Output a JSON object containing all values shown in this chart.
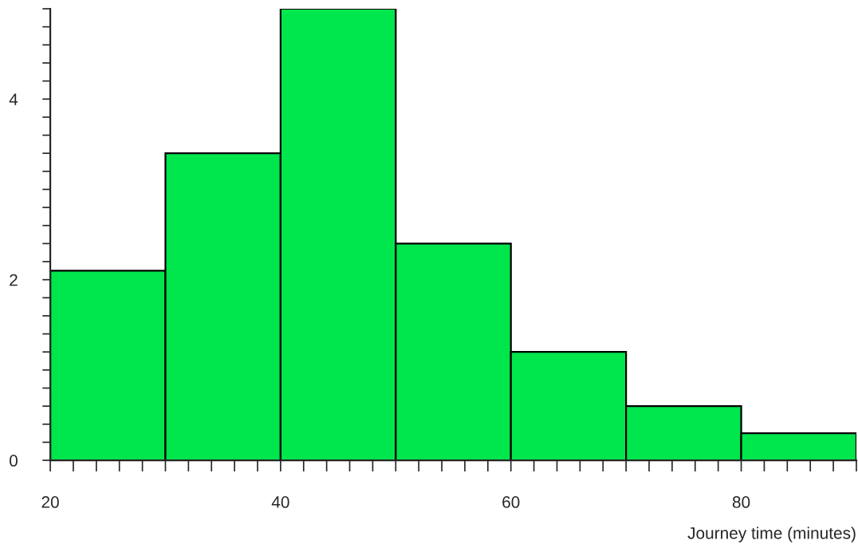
{
  "chart_data": {
    "type": "histogram",
    "xlabel": "Journey time (minutes)",
    "bins": [
      20,
      30,
      40,
      50,
      60,
      70,
      80,
      90
    ],
    "values": [
      2.1,
      3.4,
      5.0,
      2.4,
      1.2,
      0.6,
      0.3
    ],
    "color": "#00e64d",
    "xlim": [
      20,
      90
    ],
    "ylim": [
      0,
      5
    ],
    "xticks": [
      20,
      {
        "value": 22,
        "label": null
      },
      {
        "value": 24,
        "label": null
      },
      {
        "value": 26,
        "label": null
      },
      {
        "value": 28,
        "label": null
      },
      {
        "value": 30,
        "label": null
      },
      {
        "value": 32,
        "label": null
      },
      {
        "value": 34,
        "label": null
      },
      {
        "value": 36,
        "label": null
      },
      {
        "value": 38,
        "label": null
      },
      40,
      {
        "value": 42,
        "label": null
      },
      {
        "value": 44,
        "label": null
      },
      {
        "value": 46,
        "label": null
      },
      {
        "value": 48,
        "label": null
      },
      {
        "value": 50,
        "label": null
      },
      {
        "value": 52,
        "label": null
      },
      {
        "value": 54,
        "label": null
      },
      {
        "value": 56,
        "label": null
      },
      {
        "value": 58,
        "label": null
      },
      60,
      {
        "value": 62,
        "label": null
      },
      {
        "value": 64,
        "label": null
      },
      {
        "value": 66,
        "label": null
      },
      {
        "value": 68,
        "label": null
      },
      {
        "value": 70,
        "label": null
      },
      {
        "value": 72,
        "label": null
      },
      {
        "value": 74,
        "label": null
      },
      {
        "value": 76,
        "label": null
      },
      {
        "value": 78,
        "label": null
      },
      80,
      {
        "value": 82,
        "label": null
      },
      {
        "value": 84,
        "label": null
      },
      {
        "value": 86,
        "label": null
      },
      {
        "value": 88,
        "label": null
      },
      {
        "value": 90,
        "label": null
      }
    ],
    "yticks": [
      0,
      {
        "value": 0.2,
        "label": null
      },
      {
        "value": 0.4,
        "label": null
      },
      {
        "value": 0.6,
        "label": null
      },
      {
        "value": 0.8,
        "label": null
      },
      {
        "value": 1,
        "label": null
      },
      {
        "value": 1.2,
        "label": null
      },
      {
        "value": 1.4,
        "label": null
      },
      {
        "value": 1.6,
        "label": null
      },
      {
        "value": 1.8,
        "label": null
      },
      2,
      {
        "value": 2.2,
        "label": null
      },
      {
        "value": 2.4,
        "label": null
      },
      {
        "value": 2.6,
        "label": null
      },
      {
        "value": 2.8,
        "label": null
      },
      {
        "value": 3,
        "label": null
      },
      {
        "value": 3.2,
        "label": null
      },
      {
        "value": 3.4,
        "label": null
      },
      {
        "value": 3.6,
        "label": null
      },
      {
        "value": 3.8,
        "label": null
      },
      4,
      {
        "value": 4.2,
        "label": null
      },
      {
        "value": 4.4,
        "label": null
      },
      {
        "value": 4.6,
        "label": null
      },
      {
        "value": 4.8,
        "label": null
      },
      {
        "value": 5,
        "label": null
      }
    ],
    "grid": false
  }
}
